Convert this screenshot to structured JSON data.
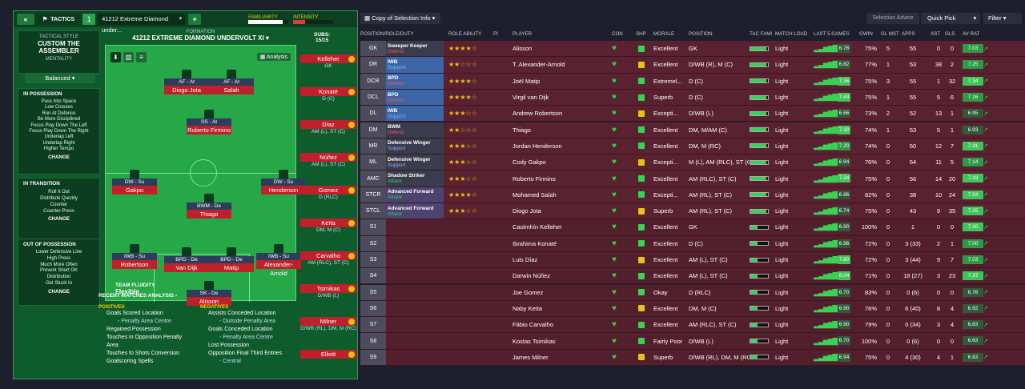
{
  "left": {
    "tactics_label": "TACTICS",
    "tactic_number": "1",
    "tactic_name": "41212 Extreme Diamond under...",
    "familiarity_label": "FAMILIARITY",
    "intensity_label": "INTENSITY",
    "tactical_style_label": "TACTICAL STYLE",
    "tactical_style": "CUSTOM THE ASSEMBLER",
    "mentality_label": "MENTALITY",
    "mentality": "Balanced",
    "in_possession": {
      "title": "IN POSSESSION",
      "items": [
        "Pass Into Space",
        "Low Crosses",
        "Run At Defence",
        "Be More Disciplined",
        "Focus Play Down The Left",
        "Focus Play Down The Right",
        "Underlap Left",
        "Underlap Right",
        "Higher Tempo"
      ]
    },
    "in_transition": {
      "title": "IN TRANSITION",
      "items": [
        "Roll It Out",
        "Distribute Quickly",
        "Counter",
        "Counter-Press"
      ]
    },
    "out_possession": {
      "title": "OUT OF POSSESSION",
      "items": [
        "Lower Defensive Line",
        "High Press",
        "Much More Often",
        "Prevent Short GK",
        "Distribution",
        "Get Stuck In"
      ]
    },
    "change_label": "CHANGE",
    "formation_label": "FORMATION",
    "formation_name": "41212 EXTREME DIAMOND UNDERVOLT XI",
    "subs_label": "SUBS:",
    "subs_count": "15/15",
    "analysis_label": "Analysis",
    "team_fluidity_label": "TEAM FLUIDITY",
    "team_fluidity": "Flexible",
    "recent_matches_label": "RECENT MATCHES ANALYSIS ›",
    "positives_label": "POSITIVES",
    "negatives_label": "NEGATIVES",
    "positives": [
      "Goals Scored Location",
      "- Penalty Area Centre",
      "Regained Possession",
      "Touches in Opposition Penalty Area",
      "Touches to Shots Conversion",
      "Goalscoring Spells"
    ],
    "negatives": [
      "Assists Conceded Location",
      "- Outside Penalty Area",
      "Goals Conceded Location",
      "- Penalty Area Centre",
      "Lost Possession",
      "Opposition Final Third Entries",
      "- Central"
    ],
    "pitch_players": [
      {
        "role": "AF - At",
        "name": "Diogo Jota"
      },
      {
        "role": "AF - At",
        "name": "Salah"
      },
      {
        "role": "SS - At",
        "name": "Roberto Firmino"
      },
      {
        "role": "DW - Su",
        "name": "Gakpo"
      },
      {
        "role": "DW - Su",
        "name": "Henderson"
      },
      {
        "role": "BWM - De",
        "name": "Thiago"
      },
      {
        "role": "IWB - Su",
        "name": "Robertson"
      },
      {
        "role": "BPD - De",
        "name": "Van Dijk"
      },
      {
        "role": "BPD - De",
        "name": "Matip"
      },
      {
        "role": "IWB - Su",
        "name": "Alexander-Arnold"
      },
      {
        "role": "SK - De",
        "name": "Alisson"
      }
    ],
    "subs": [
      {
        "name": "Kelleher",
        "pos": "GK"
      },
      {
        "name": "Konaté",
        "pos": "D (C)"
      },
      {
        "name": "Díaz",
        "pos": "AM (L), ST (C)"
      },
      {
        "name": "Núñez",
        "pos": "AM (L), ST (C)"
      },
      {
        "name": "Gomez",
        "pos": "D (RLC)"
      },
      {
        "name": "Keïta",
        "pos": "DM, M (C)"
      },
      {
        "name": "Carvalho",
        "pos": "AM (RLC), ST (C)"
      },
      {
        "name": "Tsimikas",
        "pos": "D/WB (L)"
      },
      {
        "name": "Milner",
        "pos": "D/WB (RL), DM, M (RC)"
      },
      {
        "name": "Elliott",
        "pos": ""
      }
    ]
  },
  "right": {
    "view_label": "Copy of Selection Info",
    "selection_advice": "Selection Advice",
    "quick_pick": "Quick Pick",
    "filter": "Filter",
    "headers": [
      "POSITION/ROLE/DUTY",
      "ROLE ABILITY",
      "PI",
      "PLAYER",
      "CON",
      "SHP",
      "MORALE",
      "POSITION",
      "TAC FAMI",
      "MATCH LOAD",
      "LAST 5 GAMES",
      "GWIN",
      "GL MST",
      "APPS",
      "AST",
      "GLS",
      "AV RAT"
    ],
    "rows": [
      {
        "pos": "GK",
        "role": "Sweeper Keeper",
        "duty": "Defend",
        "stars": "★★★★☆",
        "player": "Alisson",
        "morale": "Excellent",
        "position": "GK",
        "load": "Light",
        "last": "6.76",
        "gwin": "75%",
        "glm": "5",
        "apps": "55",
        "ast": "0",
        "gls": "0",
        "avr": "7.03"
      },
      {
        "pos": "DR",
        "role": "IWB",
        "duty": "Support",
        "stars": "★★☆☆☆",
        "player": "T. Alexander-Arnold",
        "morale": "Excellent",
        "position": "D/WB (R), M (C)",
        "load": "Light",
        "last": "6.82",
        "gwin": "77%",
        "glm": "1",
        "apps": "53",
        "ast": "38",
        "gls": "2",
        "avr": "7.25"
      },
      {
        "pos": "DCR",
        "role": "BPD",
        "duty": "Defend",
        "stars": "★★★★☆",
        "player": "Joël Matip",
        "morale": "Extremel...",
        "position": "D (C)",
        "load": "Light",
        "last": "7.36",
        "gwin": "75%",
        "glm": "3",
        "apps": "55",
        "ast": "1",
        "gls": "32",
        "avr": "7.34"
      },
      {
        "pos": "DCL",
        "role": "BPD",
        "duty": "Defend",
        "stars": "★★★★☆",
        "player": "Virgil van Dijk",
        "morale": "Superb",
        "position": "D (C)",
        "load": "Light",
        "last": "7.44",
        "gwin": "75%",
        "glm": "1",
        "apps": "55",
        "ast": "5",
        "gls": "6",
        "avr": "7.16"
      },
      {
        "pos": "DL",
        "role": "IWB",
        "duty": "Support",
        "stars": "★★★☆☆",
        "player": "Andrew Robertson",
        "morale": "Excepti...",
        "position": "D/WB (L)",
        "load": "Light",
        "last": "6.66",
        "gwin": "73%",
        "glm": "2",
        "apps": "52",
        "ast": "13",
        "gls": "1",
        "avr": "6.95"
      },
      {
        "pos": "DM",
        "role": "BWM",
        "duty": "Defend",
        "stars": "★★☆☆☆",
        "player": "Thiago",
        "morale": "Excellent",
        "position": "DM, M/AM (C)",
        "load": "Light",
        "last": "7.30",
        "gwin": "74%",
        "glm": "1",
        "apps": "53",
        "ast": "5",
        "gls": "1",
        "avr": "6.93"
      },
      {
        "pos": "MR",
        "role": "Defensive Winger",
        "duty": "Support",
        "stars": "★★★☆☆",
        "player": "Jordan Henderson",
        "morale": "Excellent",
        "position": "DM, M (RC)",
        "load": "Light",
        "last": "7.20",
        "gwin": "74%",
        "glm": "0",
        "apps": "50",
        "ast": "12",
        "gls": "7",
        "avr": "7.31"
      },
      {
        "pos": "ML",
        "role": "Defensive Winger",
        "duty": "Support",
        "stars": "★★★☆☆",
        "player": "Cody Gakpo",
        "morale": "Excepti...",
        "position": "M (L), AM (RLC), ST (C",
        "load": "Light",
        "last": "6.94",
        "gwin": "76%",
        "glm": "0",
        "apps": "54",
        "ast": "11",
        "gls": "5",
        "avr": "7.14"
      },
      {
        "pos": "AMC",
        "role": "Shadow Striker",
        "duty": "Attack",
        "stars": "★★★☆☆",
        "player": "Roberto Firmino",
        "morale": "Excellent",
        "position": "AM (RLC), ST (C)",
        "load": "Light",
        "last": "7.34",
        "gwin": "75%",
        "glm": "0",
        "apps": "56",
        "ast": "14",
        "gls": "20",
        "avr": "7.33"
      },
      {
        "pos": "STCR",
        "role": "Advanced Forward",
        "duty": "Attack",
        "stars": "★★★★☆",
        "player": "Mohamed Salah",
        "morale": "Excepti...",
        "position": "AM (RL), ST (C)",
        "load": "Light",
        "last": "6.86",
        "gwin": "82%",
        "glm": "0",
        "apps": "38",
        "ast": "10",
        "gls": "24",
        "avr": "7.54"
      },
      {
        "pos": "STCL",
        "role": "Advanced Forward",
        "duty": "Attack",
        "stars": "★★★☆☆",
        "player": "Diogo Jota",
        "morale": "Superb",
        "position": "AM (RL), ST (C)",
        "load": "Light",
        "last": "6.74",
        "gwin": "75%",
        "glm": "0",
        "apps": "43",
        "ast": "9",
        "gls": "35",
        "avr": "7.35"
      },
      {
        "pos": "S1",
        "role": "",
        "duty": "",
        "stars": "",
        "player": "Caoimhín Kelleher",
        "morale": "Excellent",
        "position": "GK",
        "load": "Light",
        "last": "6.90",
        "gwin": "100%",
        "glm": "0",
        "apps": "1",
        "ast": "0",
        "gls": "0",
        "avr": "7.30"
      },
      {
        "pos": "S2",
        "role": "",
        "duty": "",
        "stars": "",
        "player": "Ibrahima Konaté",
        "morale": "Excellent",
        "position": "D (C)",
        "load": "Light",
        "last": "6.96",
        "gwin": "72%",
        "glm": "0",
        "apps": "3 (33)",
        "ast": "2",
        "gls": "1",
        "avr": "7.00"
      },
      {
        "pos": "S3",
        "role": "",
        "duty": "",
        "stars": "",
        "player": "Luis Díaz",
        "morale": "Excellent",
        "position": "AM (L), ST (C)",
        "load": "Light",
        "last": "7.60",
        "gwin": "72%",
        "glm": "0",
        "apps": "3 (44)",
        "ast": "9",
        "gls": "7",
        "avr": "7.03"
      },
      {
        "pos": "S4",
        "role": "",
        "duty": "",
        "stars": "",
        "player": "Darwin Núñez",
        "morale": "Excellent",
        "position": "AM (L), ST (C)",
        "load": "Light",
        "last": "8.04",
        "gwin": "71%",
        "glm": "0",
        "apps": "18 (27)",
        "ast": "3",
        "gls": "23",
        "avr": "7.37"
      },
      {
        "pos": "S5",
        "role": "",
        "duty": "",
        "stars": "",
        "player": "Joe Gomez",
        "morale": "Okay",
        "position": "D (RLC)",
        "load": "Light",
        "last": "6.70",
        "gwin": "83%",
        "glm": "0",
        "apps": "0 (6)",
        "ast": "0",
        "gls": "0",
        "avr": "6.76"
      },
      {
        "pos": "S6",
        "role": "",
        "duty": "",
        "stars": "",
        "player": "Naby Keïta",
        "morale": "Excellent",
        "position": "DM, M (C)",
        "load": "Light",
        "last": "6.90",
        "gwin": "76%",
        "glm": "0",
        "apps": "6 (40)",
        "ast": "8",
        "gls": "4",
        "avr": "6.92"
      },
      {
        "pos": "S7",
        "role": "",
        "duty": "",
        "stars": "",
        "player": "Fábio Carvalho",
        "morale": "Excellent",
        "position": "AM (RLC), ST (C)",
        "load": "Light",
        "last": "6.90",
        "gwin": "79%",
        "glm": "0",
        "apps": "0 (34)",
        "ast": "3",
        "gls": "4",
        "avr": "6.83"
      },
      {
        "pos": "S8",
        "role": "",
        "duty": "",
        "stars": "",
        "player": "Kostas Tsimikas",
        "morale": "Fairly Poor",
        "position": "D/WB (L)",
        "load": "Light",
        "last": "6.70",
        "gwin": "100%",
        "glm": "0",
        "apps": "0 (6)",
        "ast": "0",
        "gls": "0",
        "avr": "6.63"
      },
      {
        "pos": "S9",
        "role": "",
        "duty": "",
        "stars": "",
        "player": "James Milner",
        "morale": "Superb",
        "position": "D/WB (RL), DM, M (RC)",
        "load": "Light",
        "last": "6.94",
        "gwin": "75%",
        "glm": "0",
        "apps": "4 (30)",
        "ast": "4",
        "gls": "1",
        "avr": "6.83"
      }
    ]
  }
}
